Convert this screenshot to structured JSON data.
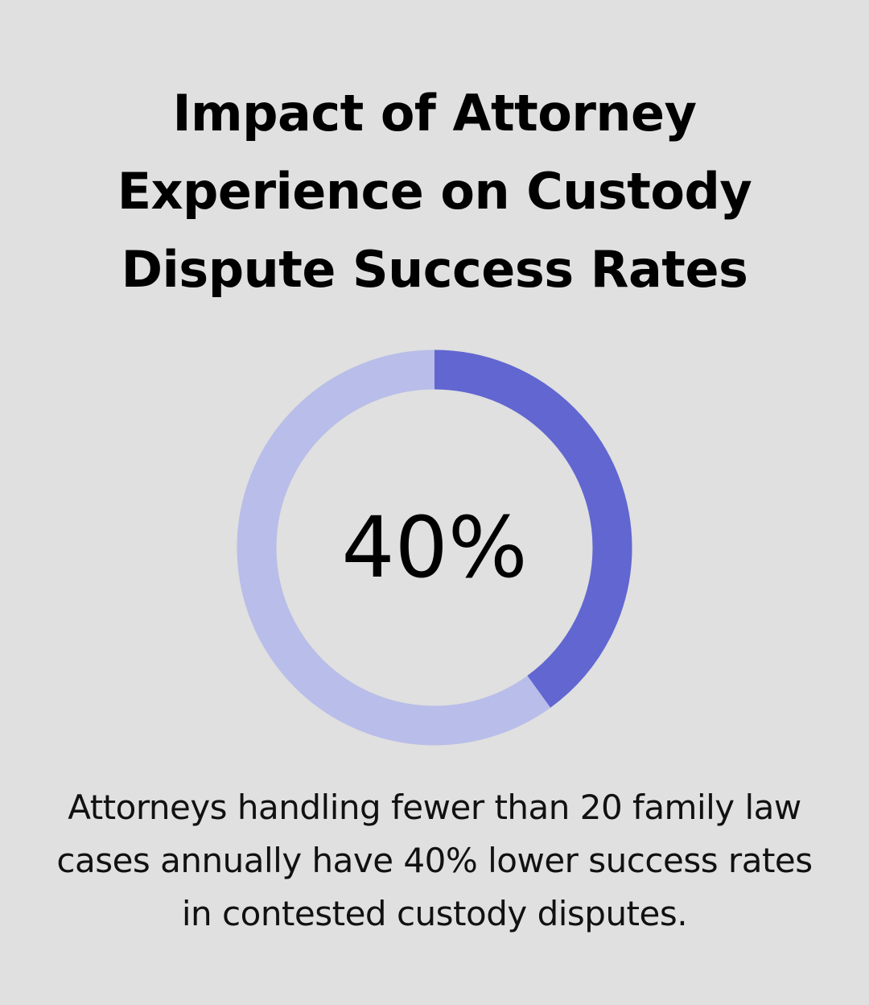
{
  "title_lines": [
    "Impact of Attorney",
    "Experience on Custody",
    "Dispute Success Rates"
  ],
  "chart_data": {
    "type": "pie",
    "variant": "donut",
    "title": "Impact of Attorney Experience on Custody Dispute Success Rates",
    "value": 40,
    "max": 100,
    "center_label": "40%",
    "slices": [
      {
        "name": "highlighted",
        "value": 40,
        "color": "#6266d0"
      },
      {
        "name": "remainder",
        "value": 60,
        "color": "#b9bde9"
      }
    ]
  },
  "caption_lines": [
    "Attorneys handling fewer than 20 family law",
    "cases annually have 40% lower success rates",
    "in contested custody disputes."
  ]
}
